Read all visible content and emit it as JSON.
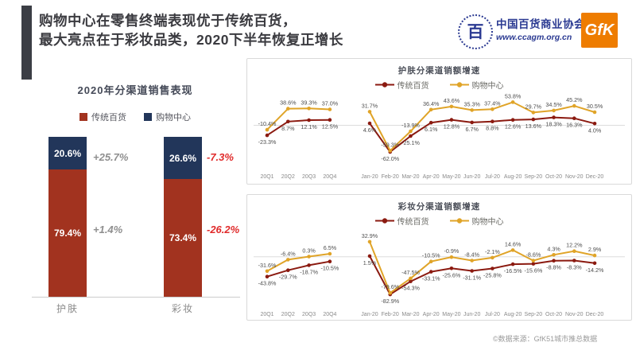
{
  "header": {
    "title_line1": "购物中心在零售终端表现优于传统百货，",
    "title_line2": "最大亮点在于彩妆品类，2020下半年恢复正增长",
    "association_seal_char": "百",
    "association_name": "中国百货商业协会",
    "association_url": "www.ccagm.org.cn",
    "gfk_logo": "GfK"
  },
  "footnote": "©数据来源：GfK51城市推总数据",
  "colors": {
    "accent_bar": "#3b3e45",
    "title_text": "#3b3b40",
    "brand_blue": "#2b3a92",
    "gfk_orange": "#ee7c00",
    "navy": "#22365a",
    "brick_red": "#a2331f",
    "line_dark_red": "#8b1a10",
    "line_gold": "#e0a428",
    "positive_annotation_gray": "#8f8f8f",
    "negative_annotation_red": "#e02b2b",
    "panel_border": "#d9d9d9"
  },
  "chart_data": [
    {
      "type": "bar",
      "stacked": true,
      "title": "2020年分渠道销售表现",
      "categories": [
        "护肤",
        "彩妆"
      ],
      "series": [
        {
          "name": "传统百货",
          "color": "#a2331f",
          "values": [
            79.4,
            73.4
          ]
        },
        {
          "name": "购物中心",
          "color": "#22365a",
          "values": [
            20.6,
            26.6
          ]
        }
      ],
      "value_unit": "%",
      "growth_annotations": [
        {
          "category": "护肤",
          "购物中心": "+25.7%",
          "传统百货": "+1.4%"
        },
        {
          "category": "彩妆",
          "购物中心": "-7.3%",
          "传统百货": "-26.2%"
        }
      ]
    },
    {
      "type": "line",
      "title": "护肤分渠道销额增速",
      "categories": [
        "20Q1",
        "20Q2",
        "20Q3",
        "20Q4",
        "Jan-20",
        "Feb-20",
        "Mar-20",
        "Apr-20",
        "May-20",
        "Jun-20",
        "Jul-20",
        "Aug-20",
        "Sep-20",
        "Oct-20",
        "Nov-20",
        "Dec-20"
      ],
      "gap_after_index": 3,
      "ylim": [
        -75,
        62
      ],
      "zero_line": true,
      "legend_position": "top",
      "series": [
        {
          "name": "传统百货",
          "color": "#8b1a10",
          "values": [
            -23.3,
            8.7,
            12.1,
            12.5,
            4.6,
            -62.0,
            -25.1,
            6.1,
            12.8,
            6.7,
            8.8,
            12.6,
            13.6,
            18.3,
            16.3,
            4.0
          ]
        },
        {
          "name": "购物中心",
          "color": "#e0a428",
          "values": [
            -10.4,
            38.6,
            39.3,
            37.0,
            31.7,
            -59.3,
            -13.9,
            36.4,
            43.6,
            35.3,
            37.4,
            53.8,
            29.7,
            34.5,
            45.2,
            30.5
          ]
        }
      ]
    },
    {
      "type": "line",
      "title": "彩妆分渠道销额增速",
      "categories": [
        "20Q1",
        "20Q2",
        "20Q3",
        "20Q4",
        "Jan-20",
        "Feb-20",
        "Mar-20",
        "Apr-20",
        "May-20",
        "Jun-20",
        "Jul-20",
        "Aug-20",
        "Sep-20",
        "Oct-20",
        "Nov-20",
        "Dec-20"
      ],
      "gap_after_index": 3,
      "ylim": [
        -95,
        45
      ],
      "zero_line": true,
      "legend_position": "top",
      "series": [
        {
          "name": "传统百货",
          "color": "#8b1a10",
          "values": [
            -43.8,
            -29.7,
            -18.7,
            -10.5,
            1.5,
            -82.9,
            -54.3,
            -33.1,
            -25.6,
            -31.1,
            -25.8,
            -16.5,
            -15.6,
            -8.8,
            -8.3,
            -14.2
          ]
        },
        {
          "name": "购物中心",
          "color": "#e0a428",
          "values": [
            -31.6,
            -6.4,
            0.3,
            6.5,
            32.9,
            -79.6,
            -47.5,
            -10.5,
            -0.9,
            -8.4,
            -2.1,
            14.6,
            -8.6,
            4.3,
            12.2,
            2.9
          ]
        }
      ]
    }
  ]
}
